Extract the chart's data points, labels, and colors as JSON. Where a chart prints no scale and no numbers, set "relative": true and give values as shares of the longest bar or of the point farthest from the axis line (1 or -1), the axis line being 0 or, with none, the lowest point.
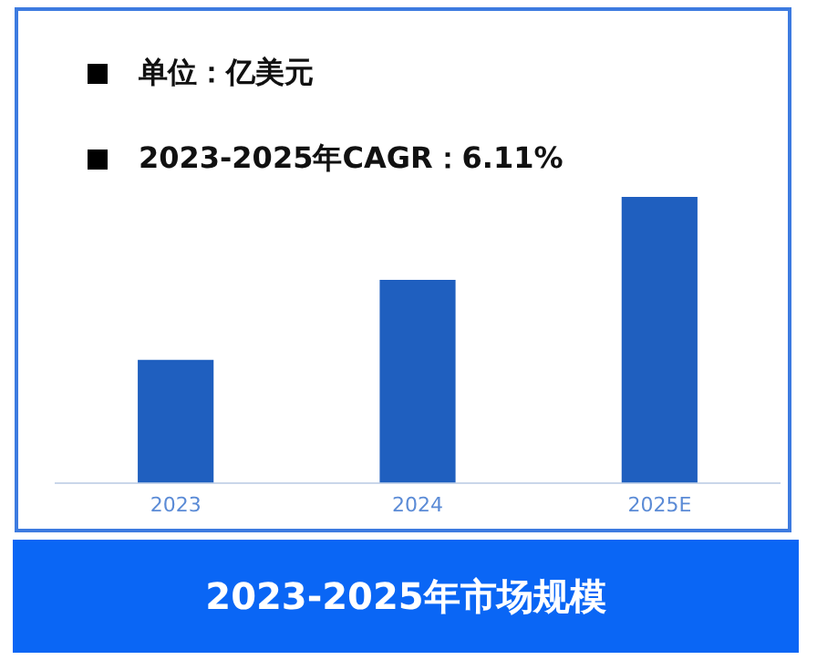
{
  "chart_data": {
    "type": "bar",
    "title": "2023-2025年市场规模",
    "annotations": [
      "单位：亿美元",
      "2023-2025年CAGR：6.11%"
    ],
    "categories": [
      "2023",
      "2024",
      "2025E"
    ],
    "values": [
      0.43,
      0.71,
      1
    ],
    "color": "#1f5fbf",
    "relative": true,
    "grid": false,
    "legend": false
  }
}
